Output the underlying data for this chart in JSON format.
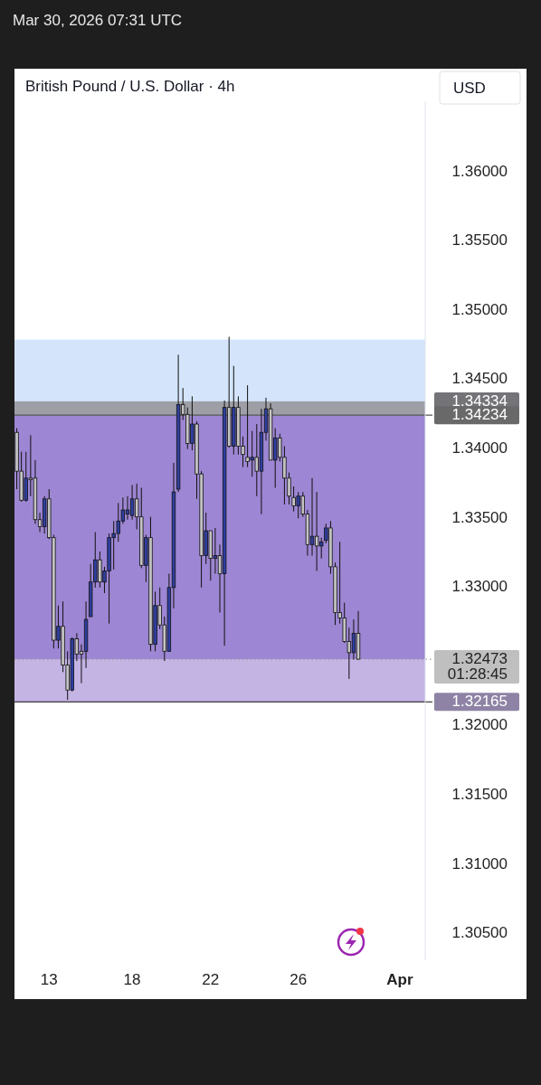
{
  "chart_data": {
    "type": "candlestick",
    "title": "British Pound / U.S. Dollar · 4h",
    "subtitle": "Mar 30, 2026 07:31 UTC",
    "ylabel": "USD",
    "categories": [
      null,
      null,
      null,
      null,
      null,
      null,
      null,
      "13",
      null,
      null,
      null,
      null,
      null,
      null,
      null,
      null,
      null,
      null,
      null,
      null,
      null,
      null,
      null,
      null,
      null,
      "18",
      null,
      null,
      null,
      null,
      null,
      null,
      null,
      null,
      null,
      null,
      null,
      null,
      null,
      null,
      null,
      null,
      "22",
      null,
      null,
      null,
      null,
      null,
      null,
      null,
      null,
      null,
      null,
      null,
      null,
      null,
      null,
      null,
      null,
      null,
      null,
      "26",
      null,
      null,
      null,
      null,
      null,
      null,
      null,
      null,
      null,
      null,
      null,
      null,
      null,
      null,
      null,
      null,
      null,
      null,
      null,
      null,
      null,
      "Apr",
      null,
      null,
      null,
      null,
      null
    ],
    "ohlc": [
      [
        1.3411,
        1.3414,
        1.337,
        1.3383
      ],
      [
        1.3383,
        1.3397,
        1.3361,
        1.3362
      ],
      [
        1.3362,
        1.3397,
        1.3361,
        1.3378
      ],
      [
        1.3378,
        1.3409,
        1.3365,
        1.3377
      ],
      [
        1.3378,
        1.3391,
        1.3345,
        1.3348
      ],
      [
        1.3348,
        1.3353,
        1.3339,
        1.3343
      ],
      [
        1.3343,
        1.3365,
        1.3338,
        1.3363
      ],
      [
        1.3363,
        1.337,
        1.3334,
        1.3335
      ],
      [
        1.3335,
        1.3337,
        1.3255,
        1.3261
      ],
      [
        1.3261,
        1.3286,
        1.3255,
        1.3271
      ],
      [
        1.3271,
        1.3289,
        1.3238,
        1.3243
      ],
      [
        1.3243,
        1.3253,
        1.3218,
        1.3225
      ],
      [
        1.3225,
        1.3263,
        1.3224,
        1.3262
      ],
      [
        1.3262,
        1.3266,
        1.3246,
        1.3251
      ],
      [
        1.3253,
        1.3258,
        1.323,
        1.3251
      ],
      [
        1.3253,
        1.3289,
        1.3241,
        1.3276
      ],
      [
        1.3278,
        1.3316,
        1.3278,
        1.3303
      ],
      [
        1.3303,
        1.3339,
        1.3299,
        1.3319
      ],
      [
        1.3319,
        1.3325,
        1.3299,
        1.3303
      ],
      [
        1.3303,
        1.3314,
        1.3295,
        1.3311
      ],
      [
        1.3311,
        1.3338,
        1.3273,
        1.3335
      ],
      [
        1.3335,
        1.3347,
        1.3312,
        1.3338
      ],
      [
        1.3338,
        1.336,
        1.3332,
        1.3347
      ],
      [
        1.3347,
        1.3364,
        1.3345,
        1.3355
      ],
      [
        1.3352,
        1.3365,
        1.3348,
        1.3355
      ],
      [
        1.3351,
        1.3373,
        1.3348,
        1.3363
      ],
      [
        1.3363,
        1.3374,
        1.3341,
        1.335
      ],
      [
        1.335,
        1.3371,
        1.3313,
        1.3315
      ],
      [
        1.3315,
        1.3337,
        1.3303,
        1.3335
      ],
      [
        1.3335,
        1.335,
        1.3253,
        1.3258
      ],
      [
        1.3258,
        1.3296,
        1.3253,
        1.3286
      ],
      [
        1.3286,
        1.3299,
        1.3269,
        1.3272
      ],
      [
        1.3272,
        1.3278,
        1.3246,
        1.3253
      ],
      [
        1.3253,
        1.3309,
        1.3253,
        1.3299
      ],
      [
        1.3299,
        1.3389,
        1.3284,
        1.3368
      ],
      [
        1.337,
        1.3467,
        1.3368,
        1.3431
      ],
      [
        1.3431,
        1.3443,
        1.342,
        1.3424
      ],
      [
        1.3424,
        1.3429,
        1.3399,
        1.3403
      ],
      [
        1.3403,
        1.3437,
        1.3398,
        1.3417
      ],
      [
        1.3417,
        1.3419,
        1.3363,
        1.3381
      ],
      [
        1.3381,
        1.3383,
        1.3299,
        1.3322
      ],
      [
        1.3322,
        1.3353,
        1.3316,
        1.334
      ],
      [
        1.334,
        1.334,
        1.3304,
        1.332
      ],
      [
        1.332,
        1.3342,
        1.3309,
        1.3322
      ],
      [
        1.3322,
        1.333,
        1.3281,
        1.3309
      ],
      [
        1.3309,
        1.3434,
        1.3257,
        1.3429
      ],
      [
        1.3429,
        1.348,
        1.34,
        1.3401
      ],
      [
        1.3401,
        1.3459,
        1.3395,
        1.3429
      ],
      [
        1.3429,
        1.3437,
        1.3395,
        1.3401
      ],
      [
        1.3401,
        1.3408,
        1.3386,
        1.3395
      ],
      [
        1.3393,
        1.3445,
        1.3386,
        1.339
      ],
      [
        1.3391,
        1.3412,
        1.3379,
        1.3393
      ],
      [
        1.3393,
        1.3417,
        1.3365,
        1.3383
      ],
      [
        1.3383,
        1.3428,
        1.3352,
        1.3411
      ],
      [
        1.3411,
        1.3436,
        1.3405,
        1.3428
      ],
      [
        1.3428,
        1.3432,
        1.3391,
        1.3391
      ],
      [
        1.3391,
        1.3414,
        1.3371,
        1.3407
      ],
      [
        1.3407,
        1.341,
        1.339,
        1.3393
      ],
      [
        1.3393,
        1.3401,
        1.3359,
        1.3378
      ],
      [
        1.3378,
        1.3382,
        1.3359,
        1.3365
      ],
      [
        1.3364,
        1.3372,
        1.3354,
        1.3358
      ],
      [
        1.3358,
        1.3368,
        1.3349,
        1.3365
      ],
      [
        1.3365,
        1.3368,
        1.335,
        1.3352
      ],
      [
        1.3352,
        1.3355,
        1.3322,
        1.333
      ],
      [
        1.333,
        1.3378,
        1.3322,
        1.3336
      ],
      [
        1.3336,
        1.3368,
        1.3311,
        1.3329
      ],
      [
        1.3329,
        1.3335,
        1.332,
        1.3332
      ],
      [
        1.3333,
        1.3345,
        1.3331,
        1.3342
      ],
      [
        1.3342,
        1.3347,
        1.3309,
        1.3314
      ],
      [
        1.3314,
        1.3317,
        1.3272,
        1.3281
      ],
      [
        1.3281,
        1.3332,
        1.3273,
        1.3277
      ],
      [
        1.3277,
        1.3288,
        1.3259,
        1.326
      ],
      [
        1.326,
        1.327,
        1.3233,
        1.3252
      ],
      [
        1.3252,
        1.3276,
        1.3247,
        1.3266
      ],
      [
        1.3266,
        1.3282,
        1.3247,
        1.32473
      ],
      null,
      null,
      null,
      null,
      null,
      null,
      null,
      null,
      null,
      null,
      null,
      null,
      null,
      null
    ],
    "colors": [
      "#c4c4c4",
      "#c4c4c4",
      "#2e3f9f",
      "#c4c4c4",
      "#c4c4c4",
      "#c4c4c4",
      "#2e3f9f",
      "#c4c4c4",
      "#c4c4c4",
      "#2e3f9f",
      "#c4c4c4",
      "#c4c4c4",
      "#2e3f9f",
      "#c4c4c4",
      "#c4c4c4",
      "#2e3f9f",
      "#2e3f9f",
      "#2e3f9f",
      "#c4c4c4",
      "#2e3f9f",
      "#2e3f9f",
      "#2e3f9f",
      "#2e3f9f",
      "#2e3f9f",
      "#2e3f9f",
      "#2e3f9f",
      "#c4c4c4",
      "#c4c4c4",
      "#2e3f9f",
      "#c4c4c4",
      "#2e3f9f",
      "#c4c4c4",
      "#c4c4c4",
      "#2e3f9f",
      "#2e3f9f",
      "#2e3f9f",
      "#c4c4c4",
      "#c4c4c4",
      "#2e3f9f",
      "#c4c4c4",
      "#c4c4c4",
      "#2e3f9f",
      "#c4c4c4",
      "#2e3f9f",
      "#c4c4c4",
      "#2e3f9f",
      "#c4c4c4",
      "#2e3f9f",
      "#c4c4c4",
      "#c4c4c4",
      "#c4c4c4",
      "#2e3f9f",
      "#c4c4c4",
      "#2e3f9f",
      "#2e3f9f",
      "#c4c4c4",
      "#2e3f9f",
      "#c4c4c4",
      "#c4c4c4",
      "#c4c4c4",
      "#c4c4c4",
      "#2e3f9f",
      "#c4c4c4",
      "#c4c4c4",
      "#2e3f9f",
      "#c4c4c4",
      "#2e3f9f",
      "#2e3f9f",
      "#c4c4c4",
      "#c4c4c4",
      "#c4c4c4",
      "#c4c4c4",
      "#c4c4c4",
      "#2e3f9f",
      "#c4c4c4",
      null,
      null,
      null,
      null,
      null,
      null,
      null,
      null,
      null,
      null,
      null,
      null,
      null,
      null
    ],
    "ylim": [
      1.303,
      1.365
    ],
    "yticks": [
      {
        "value": 1.305,
        "label": "1.30500"
      },
      {
        "value": 1.31,
        "label": "1.31000"
      },
      {
        "value": 1.315,
        "label": "1.31500"
      },
      {
        "value": 1.32,
        "label": "1.32000"
      },
      {
        "value": 1.33,
        "label": "1.33000"
      },
      {
        "value": 1.335,
        "label": "1.33500"
      },
      {
        "value": 1.34,
        "label": "1.34000"
      },
      {
        "value": 1.345,
        "label": "1.34500"
      },
      {
        "value": 1.35,
        "label": "1.35000"
      },
      {
        "value": 1.355,
        "label": "1.35500"
      },
      {
        "value": 1.36,
        "label": "1.36000"
      }
    ],
    "bands": [
      {
        "axis": "y",
        "from": 1.3412,
        "to": 1.3478,
        "color": "#d4e5fb"
      },
      {
        "axis": "y",
        "from": 1.34234,
        "to": 1.34334,
        "label": "1.34334",
        "color": "#9e9fa6"
      },
      {
        "axis": "y",
        "from": 1.32473,
        "to": 1.34234,
        "color": "#9d86d3"
      },
      {
        "axis": "y",
        "from": 1.32473,
        "to": 1.32165,
        "label": "1.32165",
        "color": "#c4b4e4"
      }
    ],
    "ref_lines": [
      {
        "axis": "y",
        "value": 1.34234,
        "label": "1.34234",
        "color": "#555555",
        "line_style": "solid"
      },
      {
        "axis": "y",
        "value": 1.32473,
        "label": "1.32473\n01:28:45",
        "color": "#9a9a9a",
        "line_style": "dotted"
      },
      {
        "axis": "y",
        "value": 1.32165,
        "color": "#111111",
        "line_style": "solid"
      }
    ]
  }
}
